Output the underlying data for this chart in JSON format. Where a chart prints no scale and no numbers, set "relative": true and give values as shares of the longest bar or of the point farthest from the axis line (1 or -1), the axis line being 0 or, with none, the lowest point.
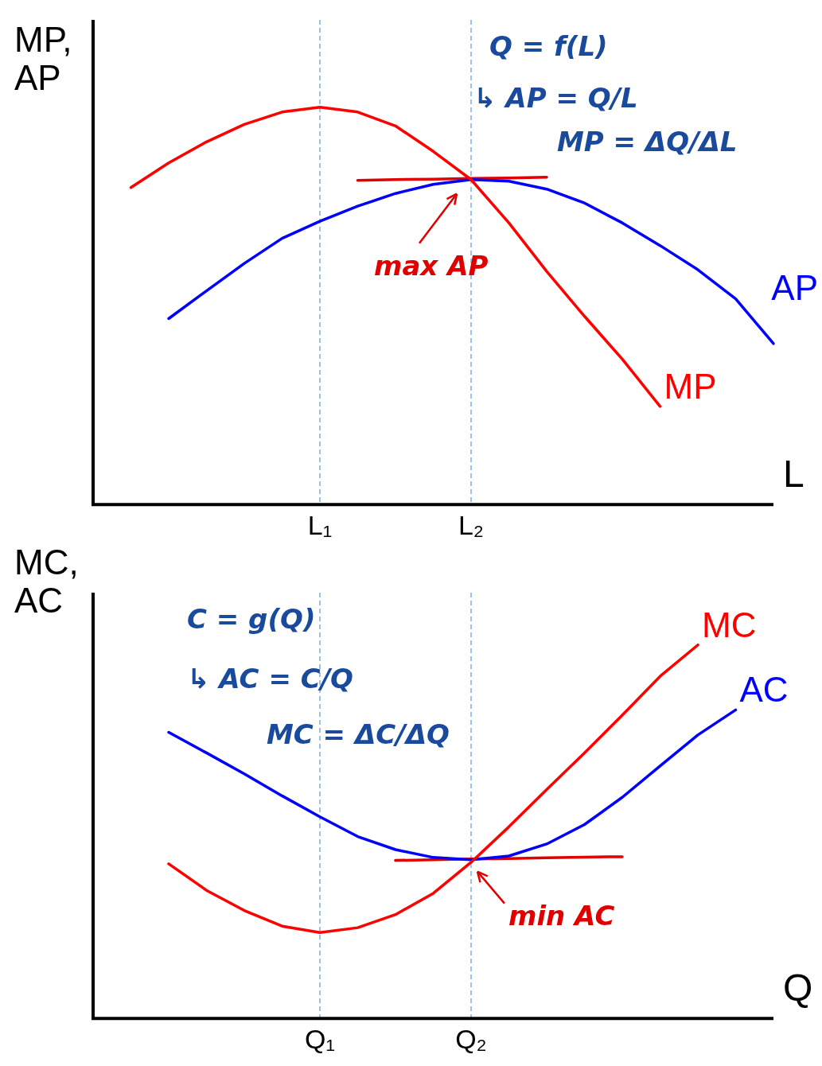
{
  "chart_data": [
    {
      "type": "line",
      "relative": true,
      "xlabel": "L",
      "ylabel": "MP,\nAP",
      "categories": [
        null,
        null,
        null,
        null,
        null,
        null,
        "L₁",
        null,
        null,
        null,
        "L₂",
        null,
        null,
        null,
        null,
        null,
        null,
        null,
        null
      ],
      "legend": false,
      "grid": false,
      "marker": "none",
      "line_style": "solid",
      "series": [
        {
          "name": "MP",
          "color": "#ff0000",
          "values": [
            null,
            0.798,
            0.86,
            0.913,
            0.957,
            0.988,
            1,
            0.988,
            0.953,
            0.889,
            0.818,
            0.709,
            0.587,
            0.474,
            0.366,
            0.247,
            null,
            null,
            null
          ]
        },
        {
          "name": "AP",
          "color": "#0000ff",
          "values": [
            null,
            null,
            0.468,
            0.538,
            0.607,
            0.67,
            0.713,
            0.751,
            0.783,
            0.806,
            0.818,
            0.814,
            0.794,
            0.759,
            0.709,
            0.652,
            0.591,
            0.518,
            0.405
          ]
        },
        {
          "color": "#e00000",
          "values": [
            null,
            null,
            null,
            null,
            null,
            null,
            null,
            0.816,
            0.818,
            0.819,
            0.821,
            0.822,
            0.824,
            null,
            null,
            null,
            null,
            null,
            null
          ]
        }
      ],
      "ref_lines": [
        {
          "axis": "x",
          "value": "L₁",
          "color": "#5b9bd5",
          "line_style": "dashed"
        },
        {
          "axis": "x",
          "value": "L₂",
          "color": "#5b9bd5",
          "line_style": "dashed"
        }
      ],
      "annotations": [
        "Q = f(L)",
        "↳ AP = Q/L",
        "MP = ΔQ/ΔL",
        {
          "text": "max AP",
          "x": "L₂",
          "y": 0.818
        }
      ]
    },
    {
      "type": "line",
      "relative": true,
      "xlabel": "Q",
      "ylabel": "MC,\nAC",
      "categories": [
        null,
        null,
        null,
        null,
        null,
        null,
        "Q₁",
        null,
        null,
        null,
        "Q₂",
        null,
        null,
        null,
        null,
        null,
        null,
        null,
        null
      ],
      "legend": false,
      "grid": false,
      "marker": "none",
      "line_style": "solid",
      "series": [
        {
          "name": "MC",
          "color": "#ff0000",
          "values": [
            null,
            null,
            0.414,
            0.343,
            0.289,
            0.247,
            0.23,
            0.243,
            0.278,
            0.335,
            0.418,
            0.513,
            0.613,
            0.711,
            0.812,
            0.916,
            1,
            null,
            null
          ]
        },
        {
          "name": "AC",
          "color": "#0000ff",
          "values": [
            null,
            null,
            0.766,
            0.711,
            0.655,
            0.596,
            0.54,
            0.487,
            0.452,
            0.431,
            0.425,
            0.435,
            0.467,
            0.519,
            0.592,
            0.676,
            0.759,
            0.826,
            null
          ]
        },
        {
          "color": "#e00000",
          "values": [
            null,
            null,
            null,
            null,
            null,
            null,
            null,
            null,
            0.423,
            0.425,
            0.427,
            0.428,
            0.43,
            0.432,
            0.433,
            null,
            null,
            null,
            null
          ]
        }
      ],
      "ref_lines": [
        {
          "axis": "x",
          "value": "Q₁",
          "color": "#5b9bd5",
          "line_style": "dashed"
        },
        {
          "axis": "x",
          "value": "Q₂",
          "color": "#5b9bd5",
          "line_style": "dashed"
        }
      ],
      "annotations": [
        "C = g(Q)",
        "↳ AC = C/Q",
        "MC = ΔC/ΔQ",
        {
          "text": "min AC",
          "x": "Q₂",
          "y": 0.425
        }
      ]
    }
  ]
}
